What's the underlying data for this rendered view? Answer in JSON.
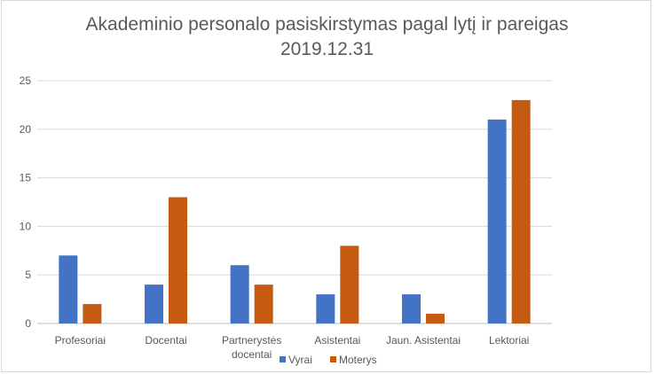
{
  "chart_data": {
    "type": "bar",
    "title_line1": "Akademinio personalo pasiskirstymas pagal lytį ir pareigas",
    "title_line2": "2019.12.31",
    "categories": [
      "Profesoriai",
      "Docentai",
      "Partnerystės docentai",
      "Asistentai",
      "Jaun. Asistentai",
      "Lektoriai"
    ],
    "series": [
      {
        "name": "Vyrai",
        "color": "#4472c4",
        "values": [
          7,
          4,
          6,
          3,
          3,
          21
        ]
      },
      {
        "name": "Moterys",
        "color": "#c55a11",
        "values": [
          2,
          13,
          4,
          8,
          1,
          23
        ]
      }
    ],
    "yticks": [
      0,
      5,
      10,
      15,
      20,
      25
    ],
    "ylim": [
      0,
      25
    ],
    "grid": true,
    "legend_position": "bottom"
  }
}
